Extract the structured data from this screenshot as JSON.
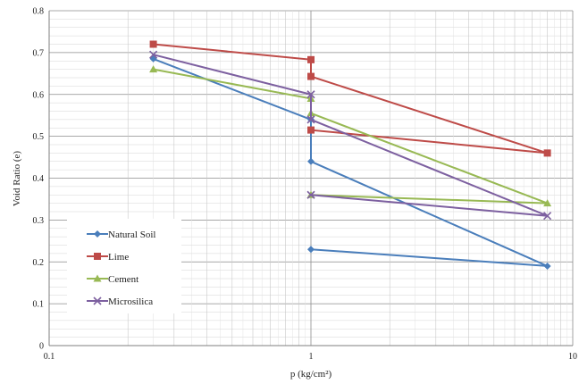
{
  "chart_data": {
    "type": "line",
    "title": "",
    "xlabel": "p (kg/cm²)",
    "ylabel": "Void Ratio (e)",
    "x_scale": "log",
    "xlim": [
      0.1,
      10
    ],
    "ylim": [
      0,
      0.8
    ],
    "x_ticks": [
      {
        "value": 0.1,
        "label": "0.1"
      },
      {
        "value": 1,
        "label": "1"
      },
      {
        "value": 10,
        "label": "10"
      }
    ],
    "y_ticks": [
      {
        "value": 0,
        "label": "0"
      },
      {
        "value": 0.1,
        "label": "0.1"
      },
      {
        "value": 0.2,
        "label": "0.2"
      },
      {
        "value": 0.3,
        "label": "0.3"
      },
      {
        "value": 0.4,
        "label": "0.4"
      },
      {
        "value": 0.5,
        "label": "0.5"
      },
      {
        "value": 0.6,
        "label": "0.6"
      },
      {
        "value": 0.7,
        "label": "0.7"
      },
      {
        "value": 0.8,
        "label": "0.8"
      }
    ],
    "grid": true,
    "legend_position": "bottom-left",
    "series": [
      {
        "name": "Natural Soil",
        "color": "#4a7ebb",
        "marker": "diamond",
        "points": [
          [
            0.25,
            0.685
          ],
          [
            1,
            0.54
          ],
          [
            1,
            0.44
          ],
          [
            8,
            0.19
          ],
          [
            1,
            0.23
          ]
        ]
      },
      {
        "name": "Lime",
        "color": "#be4b48",
        "marker": "square",
        "points": [
          [
            0.25,
            0.72
          ],
          [
            1,
            0.683
          ],
          [
            1,
            0.643
          ],
          [
            8,
            0.46
          ],
          [
            1,
            0.515
          ]
        ]
      },
      {
        "name": "Cement",
        "color": "#98b954",
        "marker": "triangle",
        "points": [
          [
            0.25,
            0.66
          ],
          [
            1,
            0.59
          ],
          [
            1,
            0.555
          ],
          [
            8,
            0.34
          ],
          [
            1,
            0.36
          ]
        ]
      },
      {
        "name": "Microsilica",
        "color": "#7d60a0",
        "marker": "x",
        "points": [
          [
            0.25,
            0.695
          ],
          [
            1,
            0.6
          ],
          [
            1,
            0.54
          ],
          [
            8,
            0.31
          ],
          [
            1,
            0.36
          ]
        ]
      }
    ]
  }
}
